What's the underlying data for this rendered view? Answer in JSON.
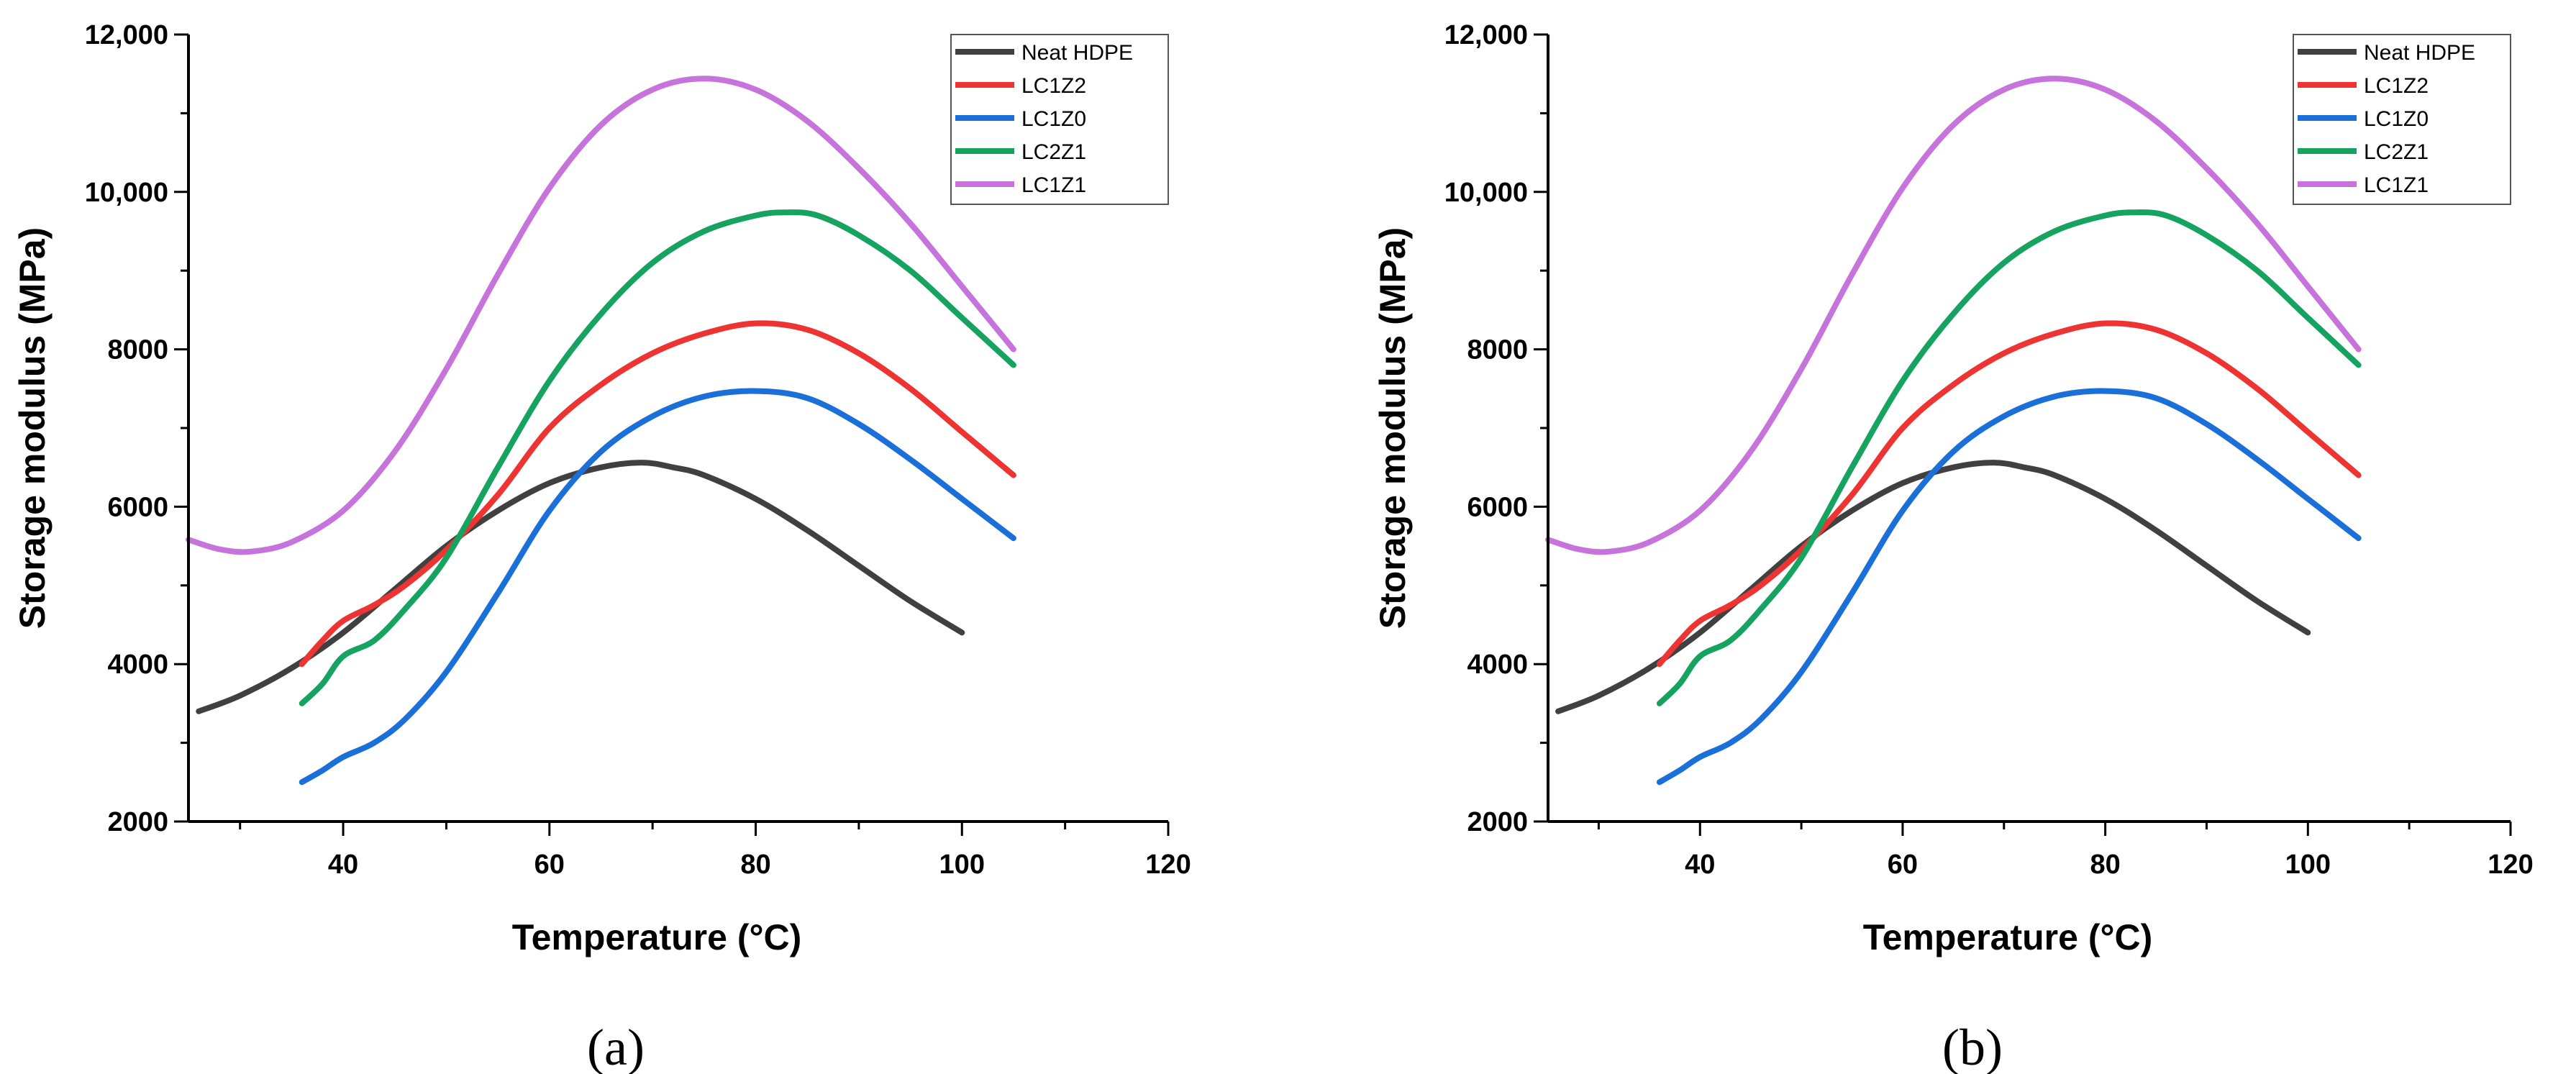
{
  "chart_data": [
    {
      "type": "line",
      "panel_label": "(a)",
      "xlabel": "Temperature (°C)",
      "ylabel": "Storage modulus (MPa)",
      "xlim": [
        25,
        120
      ],
      "ylim": [
        2000,
        12000
      ],
      "xticks": [
        40,
        60,
        80,
        100,
        120
      ],
      "xtick_labels": [
        "40",
        "60",
        "80",
        "100",
        "120"
      ],
      "yticks": [
        2000,
        4000,
        6000,
        8000,
        10000,
        12000
      ],
      "ytick_labels": [
        "2000",
        "4000",
        "6000",
        "8000",
        "10,000",
        "12,000"
      ],
      "legend_position": "top-right",
      "series": [
        {
          "name": "Neat HDPE",
          "color": "#404040",
          "x": [
            26,
            30,
            35,
            40,
            45,
            50,
            55,
            60,
            65,
            69,
            72,
            75,
            80,
            85,
            90,
            95,
            100
          ],
          "y": [
            3400,
            3600,
            3950,
            4400,
            4950,
            5500,
            5950,
            6300,
            6500,
            6560,
            6500,
            6400,
            6100,
            5700,
            5250,
            4800,
            4400
          ]
        },
        {
          "name": "LC1Z2",
          "color": "#ee3333",
          "x": [
            36,
            38,
            40,
            43,
            46,
            50,
            55,
            60,
            65,
            70,
            75,
            80,
            85,
            90,
            95,
            100,
            105
          ],
          "y": [
            4000,
            4300,
            4550,
            4750,
            5000,
            5450,
            6150,
            7000,
            7550,
            7950,
            8200,
            8330,
            8250,
            7950,
            7500,
            6950,
            6400
          ]
        },
        {
          "name": "LC1Z0",
          "color": "#1a6fd9",
          "x": [
            36,
            38,
            40,
            43,
            46,
            50,
            55,
            60,
            65,
            70,
            75,
            80,
            85,
            90,
            95,
            100,
            105
          ],
          "y": [
            2500,
            2650,
            2820,
            3000,
            3300,
            3900,
            4900,
            5950,
            6700,
            7150,
            7400,
            7470,
            7380,
            7050,
            6600,
            6100,
            5600
          ]
        },
        {
          "name": "LC2Z1",
          "color": "#16a35f",
          "x": [
            36,
            38,
            40,
            43,
            46,
            50,
            55,
            60,
            65,
            70,
            75,
            80,
            83,
            86,
            90,
            95,
            100,
            105
          ],
          "y": [
            3500,
            3750,
            4100,
            4300,
            4700,
            5350,
            6500,
            7600,
            8450,
            9100,
            9500,
            9700,
            9740,
            9700,
            9450,
            9000,
            8400,
            7800
          ]
        },
        {
          "name": "LC1Z1",
          "color": "#c773dc",
          "x": [
            25,
            28,
            31,
            35,
            40,
            45,
            50,
            55,
            60,
            65,
            70,
            75,
            80,
            85,
            90,
            95,
            100,
            105
          ],
          "y": [
            5580,
            5460,
            5430,
            5550,
            5950,
            6700,
            7750,
            8950,
            10050,
            10850,
            11300,
            11440,
            11300,
            10900,
            10300,
            9600,
            8800,
            8000
          ]
        }
      ]
    },
    {
      "type": "line",
      "panel_label": "(b)",
      "xlabel": "Temperature (°C)",
      "ylabel": "Storage modulus (MPa)",
      "xlim": [
        25,
        120
      ],
      "ylim": [
        2000,
        12000
      ],
      "xticks": [
        40,
        60,
        80,
        100,
        120
      ],
      "xtick_labels": [
        "40",
        "60",
        "80",
        "100",
        "120"
      ],
      "yticks": [
        2000,
        4000,
        6000,
        8000,
        10000,
        12000
      ],
      "ytick_labels": [
        "2000",
        "4000",
        "6000",
        "8000",
        "10,000",
        "12,000"
      ],
      "legend_position": "top-right",
      "series": [
        {
          "name": "Neat HDPE",
          "color": "#404040",
          "x": [
            26,
            30,
            35,
            40,
            45,
            50,
            55,
            60,
            65,
            69,
            72,
            75,
            80,
            85,
            90,
            95,
            100
          ],
          "y": [
            3400,
            3600,
            3950,
            4400,
            4950,
            5500,
            5950,
            6300,
            6500,
            6560,
            6500,
            6400,
            6100,
            5700,
            5250,
            4800,
            4400
          ]
        },
        {
          "name": "LC1Z2",
          "color": "#ee3333",
          "x": [
            36,
            38,
            40,
            43,
            46,
            50,
            55,
            60,
            65,
            70,
            75,
            80,
            85,
            90,
            95,
            100,
            105
          ],
          "y": [
            4000,
            4300,
            4550,
            4750,
            5000,
            5450,
            6150,
            7000,
            7550,
            7950,
            8200,
            8330,
            8250,
            7950,
            7500,
            6950,
            6400
          ]
        },
        {
          "name": "LC1Z0",
          "color": "#1a6fd9",
          "x": [
            36,
            38,
            40,
            43,
            46,
            50,
            55,
            60,
            65,
            70,
            75,
            80,
            85,
            90,
            95,
            100,
            105
          ],
          "y": [
            2500,
            2650,
            2820,
            3000,
            3300,
            3900,
            4900,
            5950,
            6700,
            7150,
            7400,
            7470,
            7380,
            7050,
            6600,
            6100,
            5600
          ]
        },
        {
          "name": "LC2Z1",
          "color": "#16a35f",
          "x": [
            36,
            38,
            40,
            43,
            46,
            50,
            55,
            60,
            65,
            70,
            75,
            80,
            83,
            86,
            90,
            95,
            100,
            105
          ],
          "y": [
            3500,
            3750,
            4100,
            4300,
            4700,
            5350,
            6500,
            7600,
            8450,
            9100,
            9500,
            9700,
            9740,
            9700,
            9450,
            9000,
            8400,
            7800
          ]
        },
        {
          "name": "LC1Z1",
          "color": "#c773dc",
          "x": [
            25,
            28,
            31,
            35,
            40,
            45,
            50,
            55,
            60,
            65,
            70,
            75,
            80,
            85,
            90,
            95,
            100,
            105
          ],
          "y": [
            5580,
            5460,
            5430,
            5550,
            5950,
            6700,
            7750,
            8950,
            10050,
            10850,
            11300,
            11440,
            11300,
            10900,
            10300,
            9600,
            8800,
            8000
          ]
        }
      ]
    }
  ]
}
